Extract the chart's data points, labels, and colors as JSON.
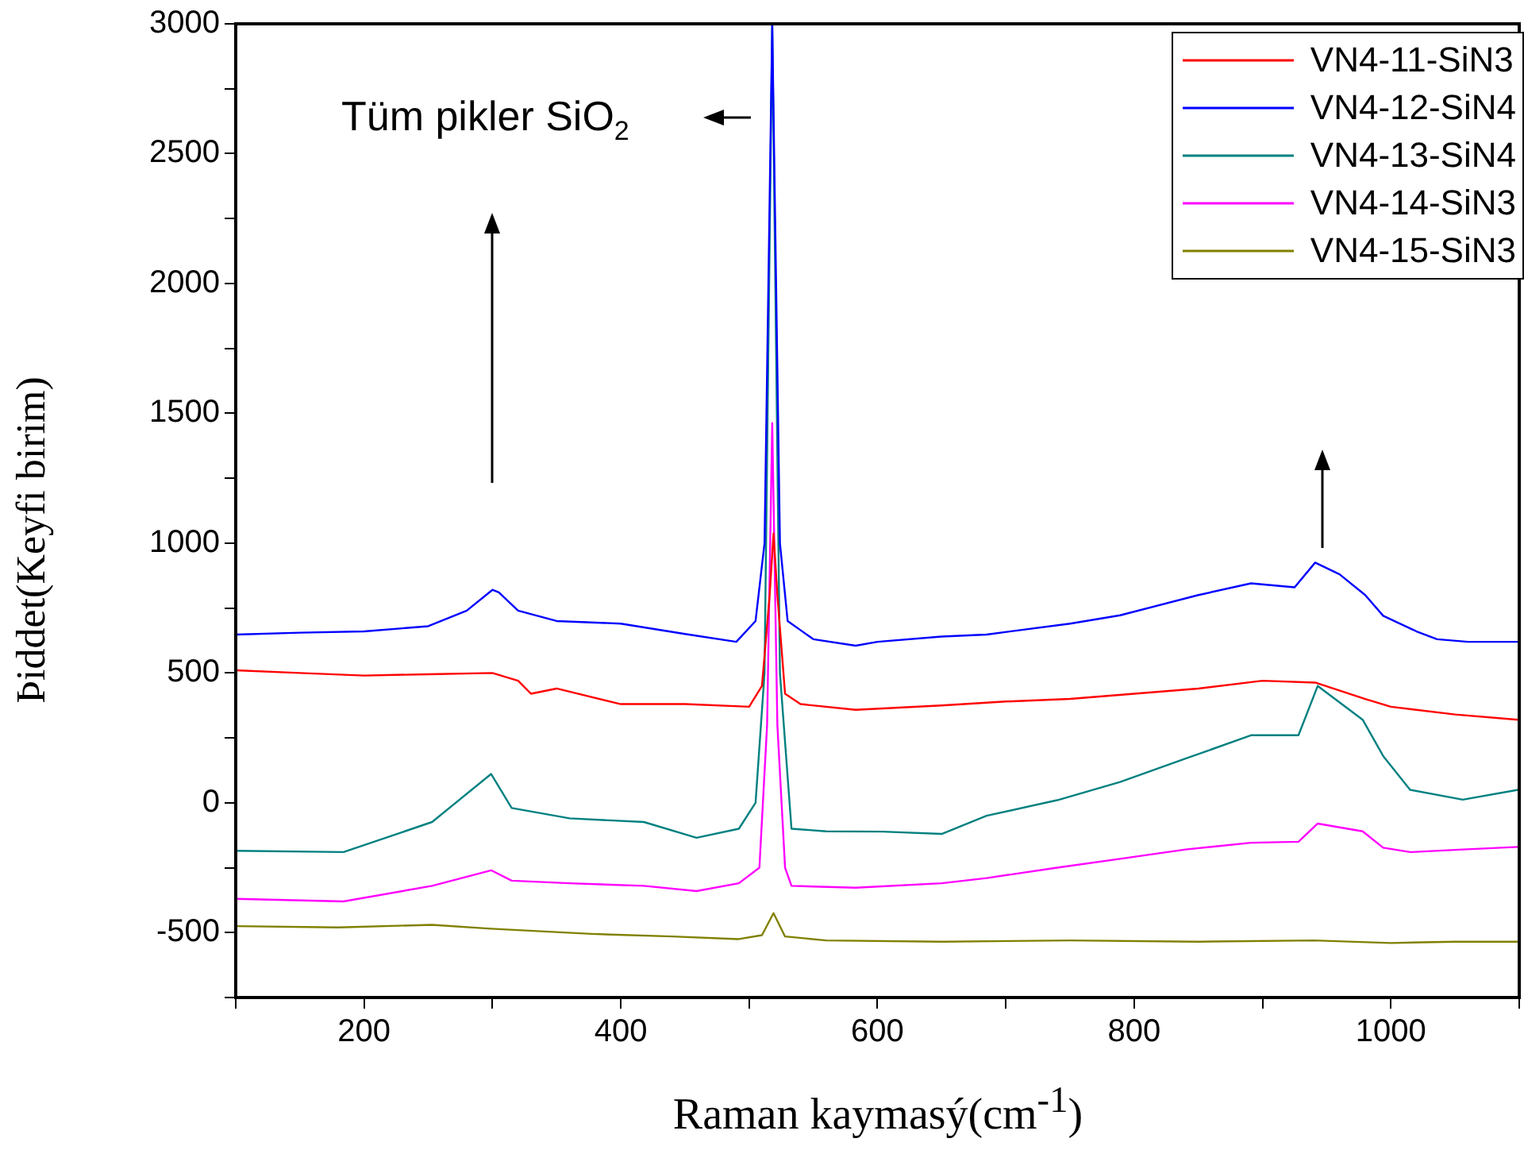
{
  "chart_data": {
    "type": "line",
    "xlabel": "Raman kaymasý(cm$^{-1}$)",
    "ylabel": "Þiddet(Keyfi birim)",
    "annotations": [
      "Tüm pikler SiO$_{2}$"
    ],
    "legend": "top right",
    "xlim": [
      100,
      1100
    ],
    "xticks": [
      {
        "value": 100,
        "label": null
      },
      200,
      {
        "value": 300,
        "label": null
      },
      400,
      {
        "value": 500,
        "label": null
      },
      600,
      {
        "value": 700,
        "label": null
      },
      800,
      {
        "value": 900,
        "label": null
      },
      1000,
      {
        "value": 1100,
        "label": null
      }
    ],
    "ylim": [
      -750,
      3000
    ],
    "yticks": [
      {
        "value": -750,
        "label": null
      },
      -500,
      {
        "value": -250,
        "label": null
      },
      0,
      {
        "value": 250,
        "label": null
      },
      500,
      {
        "value": 750,
        "label": null
      },
      1000,
      {
        "value": 1250,
        "label": null
      },
      1500,
      {
        "value": 1750,
        "label": null
      },
      2000,
      {
        "value": 2250,
        "label": null
      },
      2500,
      {
        "value": 2750,
        "label": null
      },
      3000
    ],
    "series": [
      {
        "name": "VN4-11-SiN3",
        "color": "#ff0000",
        "x": [
          100,
          150,
          200,
          250,
          300,
          320,
          330,
          350,
          400,
          450,
          500,
          510,
          516,
          519,
          522,
          528,
          540,
          583,
          650,
          700,
          750,
          800,
          850,
          900,
          941,
          980,
          1000,
          1050,
          1099
        ],
        "values": [
          510,
          500,
          490,
          495,
          500,
          470,
          420,
          440,
          380,
          380,
          370,
          450,
          800,
          1037,
          800,
          420,
          380,
          358,
          375,
          390,
          400,
          420,
          440,
          470,
          463,
          400,
          370,
          340,
          320
        ]
      },
      {
        "name": "VN4-12-SiN4",
        "color": "#0000ff",
        "x": [
          100,
          150,
          200,
          250,
          280,
          300,
          305,
          320,
          350,
          400,
          450,
          490,
          505,
          512,
          518,
          524,
          530,
          550,
          583,
          600,
          650,
          685,
          750,
          789,
          850,
          891,
          925,
          941,
          960,
          980,
          994,
          1020,
          1036,
          1060,
          1100
        ],
        "values": [
          648,
          655,
          660,
          680,
          740,
          820,
          810,
          740,
          700,
          690,
          650,
          620,
          700,
          1000,
          3000,
          1000,
          700,
          630,
          605,
          620,
          640,
          648,
          690,
          722,
          800,
          845,
          830,
          925,
          880,
          800,
          720,
          660,
          630,
          620,
          620
        ]
      },
      {
        "name": "VN4-13-SiN4",
        "color": "#008080",
        "x": [
          100,
          184,
          253,
          299,
          315,
          360,
          418,
          459,
          492,
          505,
          512,
          518,
          524,
          533,
          560,
          604,
          650,
          685,
          740,
          789,
          840,
          891,
          928,
          943,
          978,
          994,
          1015,
          1056,
          1099
        ],
        "values": [
          -185,
          -190,
          -74,
          111,
          -20,
          -60,
          -74,
          -135,
          -100,
          0,
          500,
          3000,
          500,
          -100,
          -110,
          -111,
          -120,
          -50,
          10,
          80,
          170,
          260,
          260,
          450,
          320,
          180,
          50,
          12,
          50
        ]
      },
      {
        "name": "VN4-14-SiN3",
        "color": "#ff00ff",
        "x": [
          100,
          184,
          253,
          299,
          315,
          360,
          418,
          459,
          492,
          508,
          514,
          518,
          522,
          528,
          533,
          583,
          650,
          685,
          740,
          789,
          840,
          891,
          928,
          943,
          978,
          994,
          1015,
          1056,
          1099
        ],
        "values": [
          -370,
          -380,
          -320,
          -260,
          -300,
          -310,
          -320,
          -340,
          -310,
          -250,
          300,
          1462,
          300,
          -250,
          -320,
          -327,
          -310,
          -290,
          -250,
          -216,
          -180,
          -154,
          -150,
          -80,
          -110,
          -173,
          -190,
          -180,
          -170
        ]
      },
      {
        "name": "VN4-15-SiN3",
        "color": "#808000",
        "x": [
          100,
          180,
          253,
          299,
          377,
          440,
          492,
          510,
          519,
          528,
          560,
          650,
          750,
          850,
          940,
          1000,
          1050,
          1099
        ],
        "values": [
          -475,
          -480,
          -470,
          -485,
          -505,
          -515,
          -525,
          -510,
          -425,
          -515,
          -530,
          -535,
          -530,
          -535,
          -530,
          -540,
          -535,
          -535
        ]
      }
    ]
  }
}
